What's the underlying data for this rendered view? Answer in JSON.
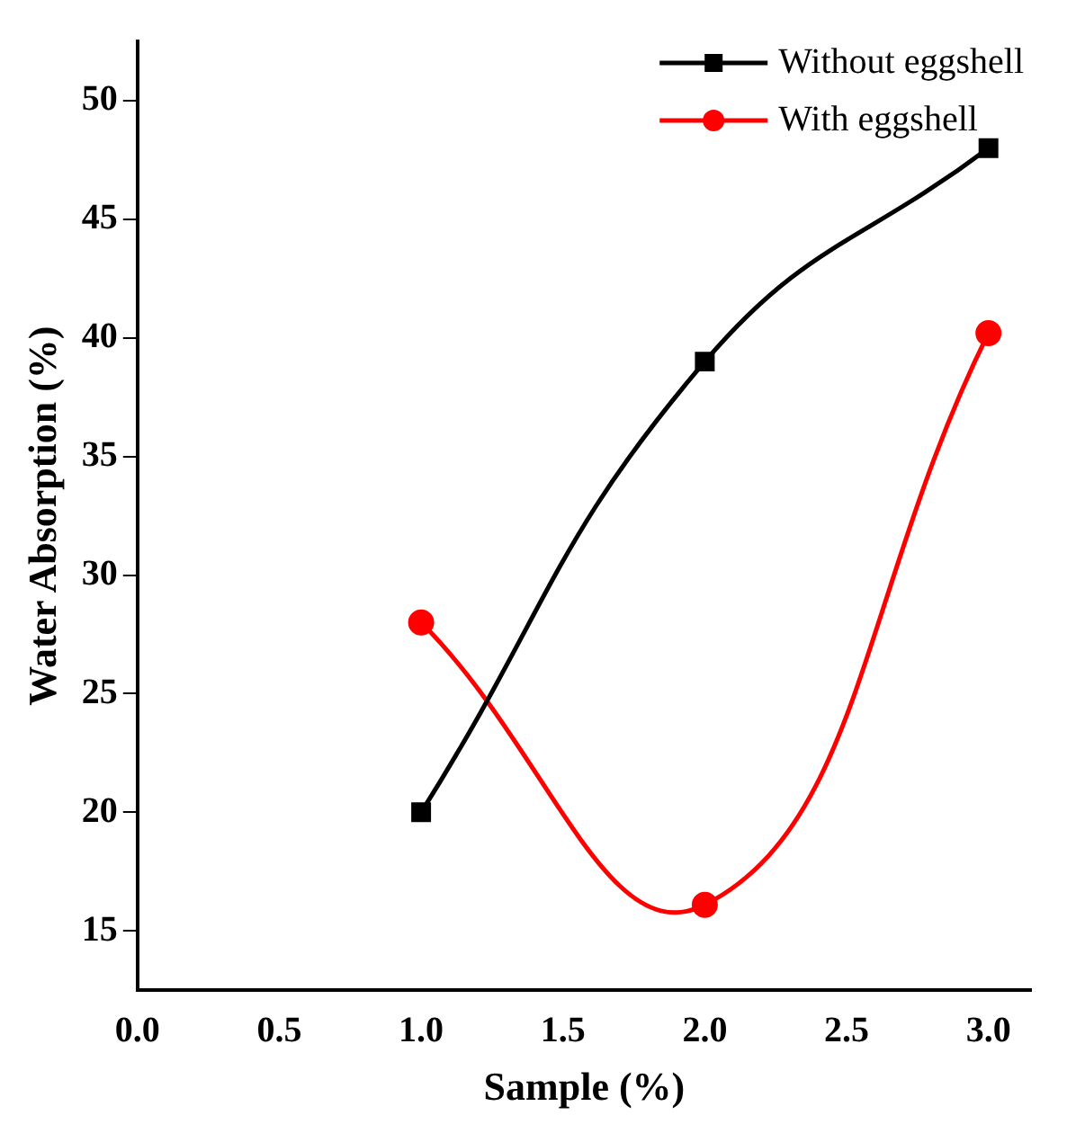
{
  "chart_data": {
    "type": "line",
    "xlabel": "Sample (%)",
    "ylabel": "Water Absorption (%)",
    "x": [
      1,
      2,
      3
    ],
    "series": [
      {
        "name": "Without eggshell",
        "color": "#000000",
        "values": [
          20,
          39,
          48
        ],
        "marker": "square"
      },
      {
        "name": "With eggshell",
        "color": "#ff0000",
        "values": [
          28,
          16.1,
          40.2
        ],
        "marker": "circle"
      }
    ],
    "xlim": [
      0,
      3.15
    ],
    "xticks": [
      {
        "value": 0,
        "label": "0.0"
      },
      {
        "value": 0.5,
        "label": "0.5"
      },
      {
        "value": 1,
        "label": "1.0"
      },
      {
        "value": 1.5,
        "label": "1.5"
      },
      {
        "value": 2,
        "label": "2.0"
      },
      {
        "value": 2.5,
        "label": "2.5"
      },
      {
        "value": 3,
        "label": "3.0"
      }
    ],
    "ylim": [
      12.5,
      52.5
    ],
    "yticks": [
      15,
      20,
      25,
      30,
      35,
      40,
      45,
      50
    ],
    "grid": false,
    "legend": "top right",
    "line_style": "solid"
  }
}
